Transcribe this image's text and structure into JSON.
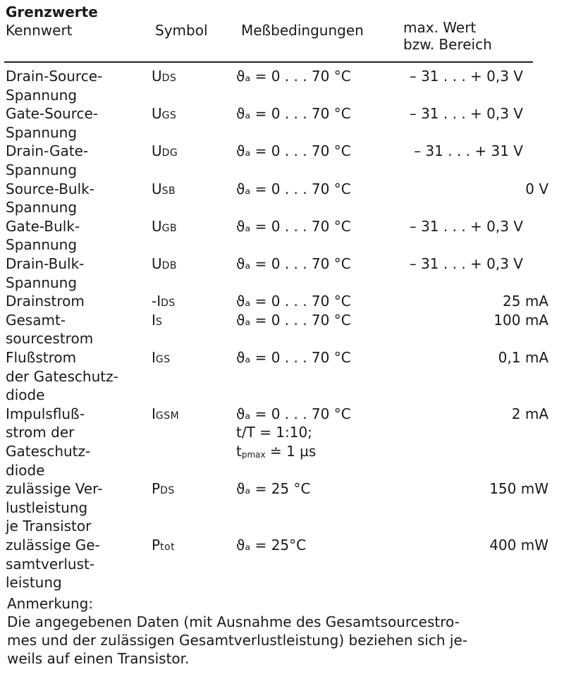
{
  "title": "Grenzwerte",
  "headers": {
    "kennwert": "Kennwert",
    "symbol": "Symbol",
    "bedingungen": "Meßbedingungen",
    "wert_line1": "max. Wert",
    "wert_line2": "bzw. Bereich"
  },
  "rows": [
    {
      "kennwert": [
        "Drain-Source-",
        "Spannung"
      ],
      "symbol": "U",
      "symbol_sub": "DS",
      "conditions": [
        {
          "main": "ϑₐ = 0 . . . 70 °C",
          "sub": ""
        }
      ],
      "value": "– 31 . . . + 0,3 V"
    },
    {
      "kennwert": [
        "Gate-Source-",
        "Spannung"
      ],
      "symbol": "U",
      "symbol_sub": "GS",
      "conditions": [
        {
          "main": "ϑₐ = 0 . . . 70 °C",
          "sub": ""
        }
      ],
      "value": "– 31 . . . + 0,3 V"
    },
    {
      "kennwert": [
        "Drain-Gate-",
        "Spannung"
      ],
      "symbol": "U",
      "symbol_sub": "DG",
      "conditions": [
        {
          "main": "ϑₐ = 0 . . . 70 °C",
          "sub": ""
        }
      ],
      "value": "– 31 . . . + 31 V"
    },
    {
      "kennwert": [
        "Source-Bulk-",
        "Spannung"
      ],
      "symbol": "U",
      "symbol_sub": "SB",
      "conditions": [
        {
          "main": "ϑₐ = 0 . . . 70 °C",
          "sub": ""
        }
      ],
      "value": "0 V"
    },
    {
      "kennwert": [
        "Gate-Bulk-",
        "Spannung"
      ],
      "symbol": "U",
      "symbol_sub": "GB",
      "conditions": [
        {
          "main": "ϑₐ = 0 . . . 70 °C",
          "sub": ""
        }
      ],
      "value": "– 31 . . . + 0,3 V"
    },
    {
      "kennwert": [
        "Drain-Bulk-",
        "Spannung"
      ],
      "symbol": "U",
      "symbol_sub": "DB",
      "conditions": [
        {
          "main": "ϑₐ = 0 . . . 70 °C",
          "sub": ""
        }
      ],
      "value": "– 31 . . . + 0,3 V"
    },
    {
      "kennwert": [
        "Drainstrom"
      ],
      "symbol": "-I",
      "symbol_sub": "DS",
      "conditions": [
        {
          "main": "ϑₐ = 0 . . . 70 °C",
          "sub": ""
        }
      ],
      "value": "25 mA"
    },
    {
      "kennwert": [
        "Gesamt-",
        "sourcestrom"
      ],
      "symbol": "I",
      "symbol_sub": "S",
      "conditions": [
        {
          "main": "ϑₐ = 0 . . . 70 °C",
          "sub": ""
        }
      ],
      "value": "100 mA"
    },
    {
      "kennwert": [
        "Flußstrom",
        "der Gateschutz-",
        "diode"
      ],
      "symbol": "I",
      "symbol_sub": "GS",
      "conditions": [
        {
          "main": "ϑₐ = 0 . . . 70 °C",
          "sub": ""
        }
      ],
      "value": "0,1 mA"
    },
    {
      "kennwert": [
        "Impulsfluß-",
        "strom der",
        "Gateschutz-",
        "diode"
      ],
      "symbol": "I",
      "symbol_sub": "GSM",
      "conditions": [
        {
          "main": "ϑₐ = 0 . . . 70 °C",
          "sub": ""
        },
        {
          "main": "t/T = 1:10;",
          "sub": ""
        },
        {
          "main": "t",
          "sub": "pmax",
          "rest": " ≐ 1 µs"
        }
      ],
      "value": "2 mA"
    },
    {
      "kennwert": [
        "zulässige Ver-",
        "lustleistung",
        "je Transistor"
      ],
      "symbol": "P",
      "symbol_sub": "DS",
      "conditions": [
        {
          "main": "ϑₐ = 25 °C",
          "sub": ""
        }
      ],
      "value": "150 mW"
    },
    {
      "kennwert": [
        "zulässige Ge-",
        "samtverlust-",
        "leistung"
      ],
      "symbol": "P",
      "symbol_sub": "tot",
      "conditions": [
        {
          "main": "ϑₐ = 25°C",
          "sub": ""
        }
      ],
      "value": "400 mW"
    }
  ],
  "note": {
    "heading": "Anmerkung:",
    "lines": [
      "Die angegebenen Daten (mit Ausnahme des Gesamtsourcestro-",
      "mes und der zulässigen Gesamtverlustleistung) beziehen sich je-",
      "weils auf einen Transistor."
    ]
  }
}
